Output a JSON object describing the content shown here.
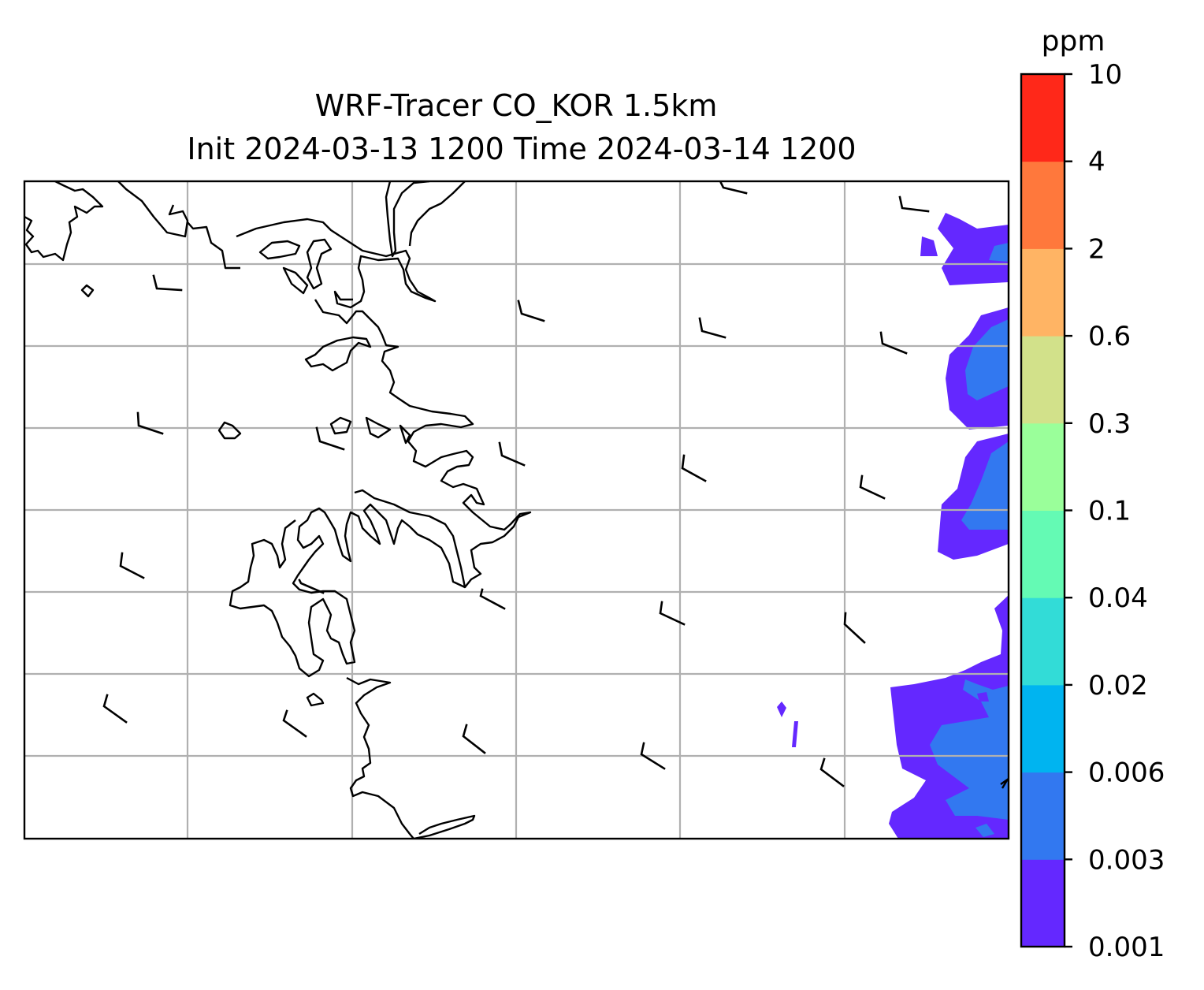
{
  "figure": {
    "title_line1": "WRF-Tracer CO_KOR 1.5km",
    "title_line2": "Init 2024-03-13 1200 Time 2024-03-14 1200"
  },
  "colorbar": {
    "unit": "ppm",
    "levels": [
      "0.001",
      "0.003",
      "0.006",
      "0.02",
      "0.04",
      "0.1",
      "0.3",
      "0.6",
      "2",
      "4",
      "10"
    ],
    "colors": [
      "#6428ff",
      "#3278f0",
      "#00b4f0",
      "#32dcd7",
      "#64fab4",
      "#9aff9a",
      "#d2e18a",
      "#ffb464",
      "#ff783c",
      "#ff2819"
    ]
  },
  "map": {
    "grid": true,
    "grid_color": "#b0b0b0",
    "coastline_color": "#000000",
    "wind_barb_color": "#000000",
    "tracer_concentration_fill": true
  }
}
